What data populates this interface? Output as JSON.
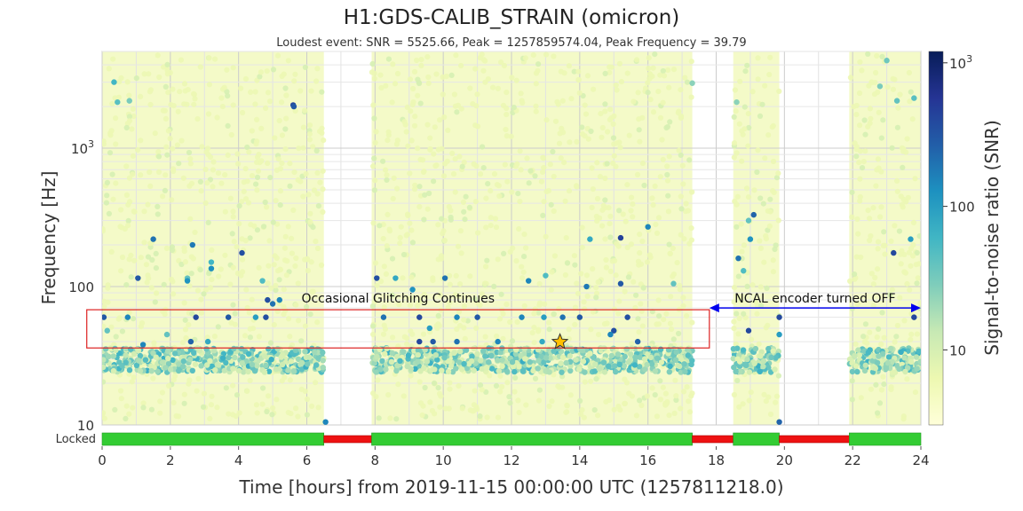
{
  "chart_data": {
    "type": "scatter",
    "title": "H1:GDS-CALIB_STRAIN (omicron)",
    "subtitle": "Loudest event: SNR = 5525.66, Peak = 1257859574.04, Peak Frequency = 39.79",
    "xlabel": "Time [hours] from 2019-11-15 00:00:00 UTC (1257811218.0)",
    "ylabel": "Frequency [Hz]",
    "xlim": [
      0,
      24
    ],
    "ylim": [
      10,
      5000
    ],
    "yscale": "log",
    "grid": true,
    "x_ticks": [
      "0",
      "2",
      "4",
      "6",
      "8",
      "10",
      "12",
      "14",
      "16",
      "18",
      "20",
      "22",
      "24"
    ],
    "y_ticks": [
      {
        "value": 10,
        "label": "10"
      },
      {
        "value": 100,
        "label": "100"
      },
      {
        "value": 1000,
        "label": "10",
        "exponent": "3"
      }
    ],
    "colorbar": {
      "label": "Signal-to-noise ratio (SNR)",
      "scale": "log",
      "range": [
        3,
        1200
      ],
      "ticks": [
        {
          "value": 10,
          "label": "10"
        },
        {
          "value": 100,
          "label": "100"
        },
        {
          "value": 1000,
          "label": "10",
          "exponent": "3"
        }
      ],
      "colors": [
        "#ffffd9",
        "#edf8b1",
        "#c7e9b4",
        "#7fcdbb",
        "#41b6c4",
        "#1d91c0",
        "#225ea8",
        "#253494",
        "#081d58"
      ]
    },
    "loudest_event": {
      "x": 13.42,
      "y": 39.79,
      "snr": 5525.66,
      "marker": "star",
      "color": "#ffc000"
    },
    "observing_segments": [
      {
        "start": 0.0,
        "end": 6.5
      },
      {
        "start": 7.9,
        "end": 17.3
      },
      {
        "start": 18.5,
        "end": 19.85
      },
      {
        "start": 21.9,
        "end": 24.0
      }
    ],
    "state_bar": {
      "label": "Locked",
      "segments": [
        {
          "start": 0.0,
          "end": 6.5,
          "state": "on"
        },
        {
          "start": 6.5,
          "end": 7.9,
          "state": "off"
        },
        {
          "start": 7.9,
          "end": 17.3,
          "state": "on"
        },
        {
          "start": 17.3,
          "end": 18.5,
          "state": "off"
        },
        {
          "start": 18.5,
          "end": 19.85,
          "state": "on"
        },
        {
          "start": 19.85,
          "end": 21.9,
          "state": "off"
        },
        {
          "start": 21.9,
          "end": 24.0,
          "state": "on"
        }
      ],
      "on_color": "#33cc33",
      "off_color": "#ee1111"
    },
    "annotations": {
      "glitch_box": {
        "text": "Occasional Glitching Continues",
        "x0": -0.45,
        "x1": 17.8,
        "y0": 36,
        "y1": 68,
        "color": "#dd2222"
      },
      "ncal_arrow": {
        "text": "NCAL encoder turned OFF",
        "x0": 17.8,
        "x1": 24.0,
        "y": 70,
        "color": "#0000ee"
      }
    },
    "points": [
      {
        "x": 0.35,
        "y": 3000,
        "snr": 60
      },
      {
        "x": 0.45,
        "y": 2150,
        "snr": 45
      },
      {
        "x": 0.8,
        "y": 2200,
        "snr": 30
      },
      {
        "x": 5.6,
        "y": 2050,
        "snr": 400
      },
      {
        "x": 5.62,
        "y": 2000,
        "snr": 300
      },
      {
        "x": 17.3,
        "y": 2950,
        "snr": 25
      },
      {
        "x": 18.6,
        "y": 2150,
        "snr": 25
      },
      {
        "x": 22.8,
        "y": 2800,
        "snr": 30
      },
      {
        "x": 23.3,
        "y": 2200,
        "snr": 40
      },
      {
        "x": 23.8,
        "y": 2300,
        "snr": 45
      },
      {
        "x": 23.0,
        "y": 4300,
        "snr": 35
      },
      {
        "x": 19.1,
        "y": 330,
        "snr": 250
      },
      {
        "x": 18.95,
        "y": 300,
        "snr": 40
      },
      {
        "x": 19.0,
        "y": 220,
        "snr": 120
      },
      {
        "x": 18.65,
        "y": 160,
        "snr": 200
      },
      {
        "x": 18.8,
        "y": 130,
        "snr": 50
      },
      {
        "x": 1.5,
        "y": 220,
        "snr": 200
      },
      {
        "x": 2.65,
        "y": 200,
        "snr": 180
      },
      {
        "x": 16.0,
        "y": 270,
        "snr": 150
      },
      {
        "x": 15.2,
        "y": 225,
        "snr": 450
      },
      {
        "x": 14.3,
        "y": 220,
        "snr": 80
      },
      {
        "x": 3.2,
        "y": 150,
        "snr": 60
      },
      {
        "x": 4.1,
        "y": 175,
        "snr": 350
      },
      {
        "x": 3.2,
        "y": 135,
        "snr": 130
      },
      {
        "x": 2.5,
        "y": 115,
        "snr": 40
      },
      {
        "x": 1.05,
        "y": 115,
        "snr": 300
      },
      {
        "x": 2.5,
        "y": 110,
        "snr": 120
      },
      {
        "x": 4.7,
        "y": 110,
        "snr": 50
      },
      {
        "x": 5.2,
        "y": 80,
        "snr": 150
      },
      {
        "x": 4.85,
        "y": 80,
        "snr": 350
      },
      {
        "x": 5.0,
        "y": 75,
        "snr": 200
      },
      {
        "x": 8.05,
        "y": 115,
        "snr": 350
      },
      {
        "x": 10.05,
        "y": 115,
        "snr": 200
      },
      {
        "x": 8.6,
        "y": 115,
        "snr": 80
      },
      {
        "x": 9.1,
        "y": 95,
        "snr": 120
      },
      {
        "x": 12.5,
        "y": 110,
        "snr": 150
      },
      {
        "x": 13.0,
        "y": 120,
        "snr": 50
      },
      {
        "x": 14.2,
        "y": 100,
        "snr": 180
      },
      {
        "x": 15.2,
        "y": 105,
        "snr": 300
      },
      {
        "x": 16.75,
        "y": 105,
        "snr": 40
      },
      {
        "x": 0.05,
        "y": 60,
        "snr": 300
      },
      {
        "x": 0.75,
        "y": 60,
        "snr": 150
      },
      {
        "x": 2.75,
        "y": 60,
        "snr": 400
      },
      {
        "x": 3.7,
        "y": 60,
        "snr": 300
      },
      {
        "x": 4.5,
        "y": 60,
        "snr": 100
      },
      {
        "x": 4.8,
        "y": 60,
        "snr": 350
      },
      {
        "x": 0.15,
        "y": 48,
        "snr": 40
      },
      {
        "x": 1.9,
        "y": 45,
        "snr": 40
      },
      {
        "x": 2.6,
        "y": 40,
        "snr": 250
      },
      {
        "x": 1.2,
        "y": 38,
        "snr": 150
      },
      {
        "x": 3.1,
        "y": 40,
        "snr": 80
      },
      {
        "x": 8.25,
        "y": 60,
        "snr": 200
      },
      {
        "x": 9.3,
        "y": 60,
        "snr": 400
      },
      {
        "x": 9.6,
        "y": 50,
        "snr": 100
      },
      {
        "x": 10.4,
        "y": 60,
        "snr": 150
      },
      {
        "x": 11.0,
        "y": 60,
        "snr": 300
      },
      {
        "x": 9.3,
        "y": 40,
        "snr": 400
      },
      {
        "x": 9.7,
        "y": 40,
        "snr": 300
      },
      {
        "x": 10.4,
        "y": 40,
        "snr": 200
      },
      {
        "x": 11.6,
        "y": 40,
        "snr": 150
      },
      {
        "x": 12.3,
        "y": 60,
        "snr": 150
      },
      {
        "x": 12.95,
        "y": 60,
        "snr": 100
      },
      {
        "x": 13.5,
        "y": 60,
        "snr": 200
      },
      {
        "x": 14.0,
        "y": 60,
        "snr": 300
      },
      {
        "x": 15.4,
        "y": 60,
        "snr": 350
      },
      {
        "x": 15.0,
        "y": 48,
        "snr": 350
      },
      {
        "x": 14.9,
        "y": 45,
        "snr": 150
      },
      {
        "x": 12.9,
        "y": 40,
        "snr": 80
      },
      {
        "x": 15.7,
        "y": 40,
        "snr": 250
      },
      {
        "x": 19.85,
        "y": 60,
        "snr": 400
      },
      {
        "x": 19.85,
        "y": 45,
        "snr": 100
      },
      {
        "x": 18.95,
        "y": 48,
        "snr": 400
      },
      {
        "x": 23.8,
        "y": 60,
        "snr": 400
      },
      {
        "x": 23.2,
        "y": 175,
        "snr": 400
      },
      {
        "x": 23.7,
        "y": 220,
        "snr": 100
      },
      {
        "x": 19.85,
        "y": 10.5,
        "snr": 250
      },
      {
        "x": 6.55,
        "y": 10.5,
        "snr": 150
      },
      {
        "x": 13.42,
        "y": 39.79,
        "snr": 5525.66
      }
    ]
  }
}
